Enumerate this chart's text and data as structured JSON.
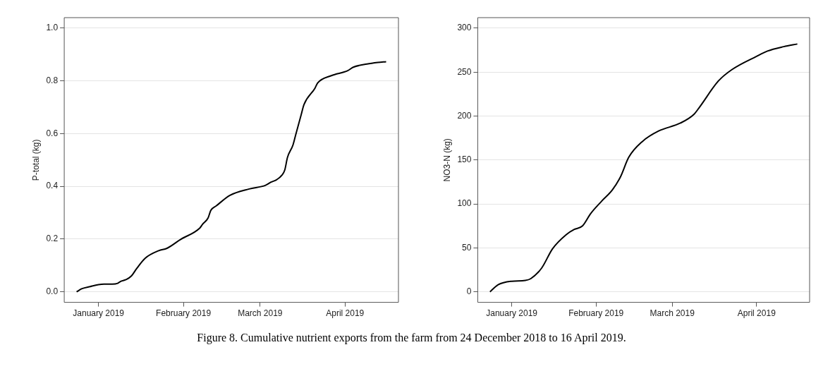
{
  "chart_data": [
    {
      "type": "line",
      "ylabel": "P-total (kg)",
      "xlim": [
        "2018-12-19T12:00",
        "2019-04-20T12:00"
      ],
      "xticks": [
        {
          "value": "2019-01-01",
          "label": "January 2019"
        },
        {
          "value": "2019-02-01",
          "label": "February 2019"
        },
        {
          "value": "2019-03-01",
          "label": "March 2019"
        },
        {
          "value": "2019-04-01",
          "label": "April 2019"
        }
      ],
      "ylim": [
        -0.04,
        1.04
      ],
      "yticks": [
        {
          "value": 0,
          "label": "0.0"
        },
        {
          "value": 0.2,
          "label": "0.2"
        },
        {
          "value": 0.4,
          "label": "0.4"
        },
        {
          "value": 0.6,
          "label": "0.6"
        },
        {
          "value": 0.8,
          "label": "0.8"
        },
        {
          "value": 1,
          "label": "1.0"
        }
      ],
      "grid": "y",
      "legend": false,
      "marker": "none",
      "line_style": "solid",
      "annotations": [
        "Figure 8. Cumulative nutrient exports from the farm from 24 December 2018 to 16 April 2019."
      ],
      "series": [
        {
          "color": "#000000",
          "x": [
            "2018-12-24",
            "2018-12-26",
            "2018-12-29",
            "2019-01-01",
            "2019-01-03",
            "2019-01-06",
            "2019-01-08",
            "2019-01-09",
            "2019-01-11",
            "2019-01-13",
            "2019-01-15",
            "2019-01-18",
            "2019-01-23",
            "2019-01-26",
            "2019-01-31",
            "2019-02-07",
            "2019-02-08",
            "2019-02-10",
            "2019-02-11",
            "2019-02-13",
            "2019-02-18",
            "2019-02-25",
            "2019-03-03",
            "2019-03-05",
            "2019-03-07",
            "2019-03-09",
            "2019-03-10",
            "2019-03-11",
            "2019-03-13",
            "2019-03-14",
            "2019-03-16",
            "2019-03-17",
            "2019-03-21",
            "2019-03-22",
            "2019-03-27",
            "2019-04-02",
            "2019-04-04",
            "2019-04-09",
            "2019-04-13",
            "2019-04-16"
          ],
          "values": [
            0,
            0.012,
            0.02,
            0.027,
            0.029,
            0.029,
            0.032,
            0.039,
            0.046,
            0.06,
            0.089,
            0.127,
            0.156,
            0.165,
            0.199,
            0.242,
            0.256,
            0.28,
            0.309,
            0.326,
            0.366,
            0.39,
            0.404,
            0.416,
            0.425,
            0.443,
            0.462,
            0.51,
            0.557,
            0.596,
            0.672,
            0.71,
            0.772,
            0.792,
            0.82,
            0.839,
            0.852,
            0.864,
            0.87,
            0.873
          ]
        }
      ]
    },
    {
      "type": "line",
      "ylabel": "NO3-N (kg)",
      "xlim": [
        "2018-12-19T12:00",
        "2019-04-20T12:00"
      ],
      "xticks": [
        {
          "value": "2019-01-01",
          "label": "January 2019"
        },
        {
          "value": "2019-02-01",
          "label": "February 2019"
        },
        {
          "value": "2019-03-01",
          "label": "March 2019"
        },
        {
          "value": "2019-04-01",
          "label": "April 2019"
        }
      ],
      "ylim": [
        -12,
        312
      ],
      "yticks": [
        0,
        50,
        100,
        150,
        200,
        250,
        300
      ],
      "grid": "y",
      "legend": false,
      "marker": "none",
      "line_style": "solid",
      "series": [
        {
          "color": "#000000",
          "x": [
            "2018-12-24",
            "2018-12-27",
            "2019-01-01",
            "2019-01-06",
            "2019-01-08",
            "2019-01-12",
            "2019-01-16",
            "2019-01-21",
            "2019-01-24",
            "2019-01-27",
            "2019-01-30",
            "2019-02-03",
            "2019-02-07",
            "2019-02-10",
            "2019-02-13",
            "2019-02-18",
            "2019-02-24",
            "2019-03-04",
            "2019-03-09",
            "2019-03-11",
            "2019-03-18",
            "2019-03-23",
            "2019-04-01",
            "2019-04-05",
            "2019-04-11",
            "2019-04-16"
          ],
          "values": [
            0,
            8,
            12,
            13,
            15,
            27,
            49,
            65,
            71,
            75,
            89,
            103,
            116,
            131,
            153,
            171,
            183,
            192,
            202,
            210,
            240,
            253,
            268,
            274,
            279,
            282
          ]
        }
      ]
    }
  ]
}
